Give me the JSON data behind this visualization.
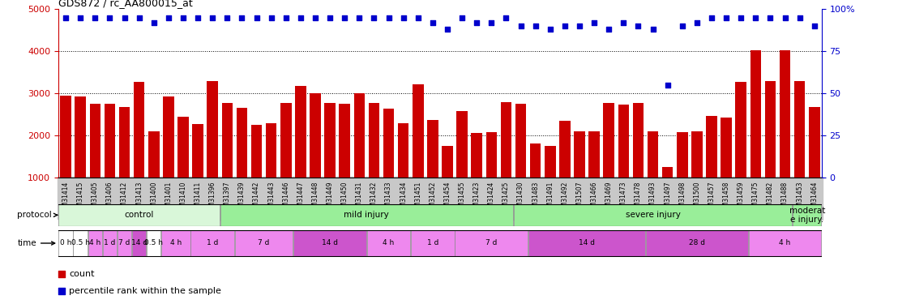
{
  "title": "GDS872 / rc_AA800015_at",
  "categories": [
    "GSM31414",
    "GSM31415",
    "GSM31405",
    "GSM31406",
    "GSM31412",
    "GSM31413",
    "GSM31400",
    "GSM31401",
    "GSM31410",
    "GSM31411",
    "GSM31396",
    "GSM31397",
    "GSM31439",
    "GSM31442",
    "GSM31443",
    "GSM31446",
    "GSM31447",
    "GSM31448",
    "GSM31449",
    "GSM31450",
    "GSM31431",
    "GSM31432",
    "GSM31433",
    "GSM31434",
    "GSM31451",
    "GSM31452",
    "GSM31454",
    "GSM31455",
    "GSM31423",
    "GSM31424",
    "GSM31425",
    "GSM31430",
    "GSM31483",
    "GSM31491",
    "GSM31492",
    "GSM31507",
    "GSM31466",
    "GSM31469",
    "GSM31473",
    "GSM31478",
    "GSM31493",
    "GSM31497",
    "GSM31498",
    "GSM31500",
    "GSM31457",
    "GSM31458",
    "GSM31459",
    "GSM31475",
    "GSM31482",
    "GSM31488",
    "GSM31453",
    "GSM31464"
  ],
  "bar_values": [
    2950,
    2920,
    2760,
    2760,
    2680,
    3280,
    2100,
    2920,
    2440,
    2270,
    3290,
    2770,
    2660,
    2260,
    2290,
    2770,
    3180,
    3000,
    2780,
    2760,
    3000,
    2770,
    2640,
    2300,
    3220,
    2380,
    1760,
    2590,
    2060,
    2080,
    2800,
    2760,
    1810,
    1760,
    2360,
    2110,
    2100,
    2780,
    2740,
    2780,
    2100,
    1260,
    2090,
    2110,
    2470,
    2430,
    3280,
    4020,
    3300,
    4020,
    3290,
    2680
  ],
  "percentile_values": [
    95,
    95,
    95,
    95,
    95,
    95,
    92,
    95,
    95,
    95,
    95,
    95,
    95,
    95,
    95,
    95,
    95,
    95,
    95,
    95,
    95,
    95,
    95,
    95,
    95,
    92,
    88,
    95,
    92,
    92,
    95,
    90,
    90,
    88,
    90,
    90,
    92,
    88,
    92,
    90,
    88,
    55,
    90,
    92,
    95,
    95,
    95,
    95,
    95,
    95,
    95,
    90
  ],
  "bar_color": "#cc0000",
  "dot_color": "#0000cc",
  "left_ylim": [
    1000,
    5000
  ],
  "right_ylim": [
    0,
    100
  ],
  "left_yticks": [
    1000,
    2000,
    3000,
    4000,
    5000
  ],
  "right_yticks": [
    0,
    25,
    50,
    75,
    100
  ],
  "right_yticklabels": [
    "0",
    "25",
    "50",
    "75",
    "100%"
  ],
  "proto_groups": [
    {
      "label": "control",
      "start": 0,
      "end": 11,
      "color": "#d9f7d9"
    },
    {
      "label": "mild injury",
      "start": 11,
      "end": 31,
      "color": "#99ee99"
    },
    {
      "label": "severe injury",
      "start": 31,
      "end": 50,
      "color": "#99ee99"
    },
    {
      "label": "moderat\ne injury.",
      "start": 50,
      "end": 52,
      "color": "#99ee99"
    }
  ],
  "time_groups": [
    {
      "label": "0 h",
      "start": 0,
      "end": 1,
      "color": "#ffffff"
    },
    {
      "label": "0.5 h",
      "start": 1,
      "end": 2,
      "color": "#ffffff"
    },
    {
      "label": "4 h",
      "start": 2,
      "end": 3,
      "color": "#ee88ee"
    },
    {
      "label": "1 d",
      "start": 3,
      "end": 4,
      "color": "#ee88ee"
    },
    {
      "label": "7 d",
      "start": 4,
      "end": 5,
      "color": "#ee88ee"
    },
    {
      "label": "14 d",
      "start": 5,
      "end": 6,
      "color": "#cc55cc"
    },
    {
      "label": "0.5 h",
      "start": 6,
      "end": 7,
      "color": "#ffffff"
    },
    {
      "label": "4 h",
      "start": 7,
      "end": 9,
      "color": "#ee88ee"
    },
    {
      "label": "1 d",
      "start": 9,
      "end": 12,
      "color": "#ee88ee"
    },
    {
      "label": "7 d",
      "start": 12,
      "end": 16,
      "color": "#ee88ee"
    },
    {
      "label": "14 d",
      "start": 16,
      "end": 21,
      "color": "#cc55cc"
    },
    {
      "label": "4 h",
      "start": 21,
      "end": 24,
      "color": "#ee88ee"
    },
    {
      "label": "1 d",
      "start": 24,
      "end": 27,
      "color": "#ee88ee"
    },
    {
      "label": "7 d",
      "start": 27,
      "end": 32,
      "color": "#ee88ee"
    },
    {
      "label": "14 d",
      "start": 32,
      "end": 40,
      "color": "#cc55cc"
    },
    {
      "label": "28 d",
      "start": 40,
      "end": 47,
      "color": "#cc55cc"
    },
    {
      "label": "4 h",
      "start": 47,
      "end": 52,
      "color": "#ee88ee"
    }
  ],
  "background_color": "#ffffff",
  "axis_label_color_left": "#cc0000",
  "axis_label_color_right": "#0000cc",
  "xtick_bg_color": "#c8c8c8"
}
